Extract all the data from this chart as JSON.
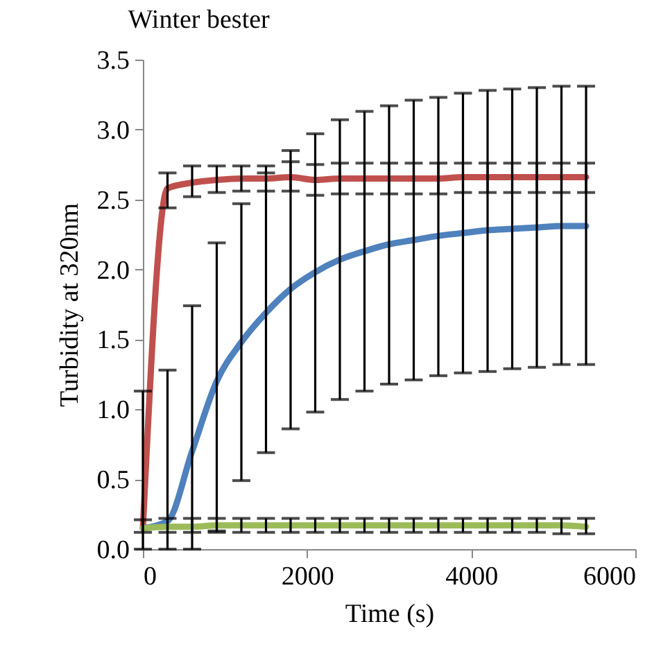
{
  "chart_data": {
    "type": "line",
    "title": "Winter bester",
    "xlabel": "Time (s)",
    "ylabel": "Turbidity at 320nm",
    "x": [
      0,
      300,
      600,
      900,
      1200,
      1500,
      1800,
      2100,
      2400,
      2700,
      3000,
      3300,
      3600,
      3900,
      4200,
      4500,
      4800,
      5100,
      5400
    ],
    "series": [
      {
        "color": "#c0504d",
        "values": [
          0.15,
          2.58,
          2.62,
          2.64,
          2.65,
          2.65,
          2.66,
          2.64,
          2.65,
          2.65,
          2.65,
          2.65,
          2.65,
          2.66,
          2.66,
          2.66,
          2.66,
          2.66,
          2.66
        ],
        "errors": [
          null,
          [
            2.44,
            2.69
          ],
          [
            2.52,
            2.74
          ],
          [
            2.55,
            2.74
          ],
          [
            2.56,
            2.74
          ],
          [
            2.56,
            2.74
          ],
          [
            2.56,
            2.77
          ],
          [
            2.53,
            2.75
          ],
          [
            2.54,
            2.76
          ],
          [
            2.54,
            2.76
          ],
          [
            2.54,
            2.76
          ],
          [
            2.54,
            2.76
          ],
          [
            2.54,
            2.76
          ],
          [
            2.55,
            2.76
          ],
          [
            2.55,
            2.76
          ],
          [
            2.55,
            2.76
          ],
          [
            2.55,
            2.76
          ],
          [
            2.55,
            2.76
          ],
          [
            2.55,
            2.76
          ]
        ]
      },
      {
        "color": "#4f81bd",
        "values": [
          0.15,
          0.2,
          0.7,
          1.2,
          1.48,
          1.69,
          1.86,
          1.98,
          2.07,
          2.13,
          2.18,
          2.21,
          2.24,
          2.26,
          2.28,
          2.29,
          2.3,
          2.31,
          2.31
        ],
        "errors": [
          [
            0,
            1.13
          ],
          [
            0,
            1.28
          ],
          [
            0,
            1.74
          ],
          [
            0.13,
            2.19
          ],
          [
            0.49,
            2.47
          ],
          [
            0.69,
            2.69
          ],
          [
            0.86,
            2.85
          ],
          [
            0.98,
            2.97
          ],
          [
            1.07,
            3.07
          ],
          [
            1.13,
            3.13
          ],
          [
            1.18,
            3.17
          ],
          [
            1.21,
            3.21
          ],
          [
            1.24,
            3.23
          ],
          [
            1.26,
            3.26
          ],
          [
            1.27,
            3.28
          ],
          [
            1.29,
            3.29
          ],
          [
            1.3,
            3.3
          ],
          [
            1.32,
            3.31
          ],
          [
            1.32,
            3.31
          ]
        ]
      },
      {
        "color": "#9bbb59",
        "values": [
          0.15,
          0.16,
          0.16,
          0.17,
          0.17,
          0.17,
          0.17,
          0.17,
          0.17,
          0.17,
          0.17,
          0.17,
          0.17,
          0.17,
          0.17,
          0.17,
          0.17,
          0.17,
          0.16
        ],
        "errors": [
          [
            0.12,
            0.21
          ],
          [
            0.12,
            0.22
          ],
          [
            0.12,
            0.22
          ],
          [
            0.12,
            0.22
          ],
          [
            0.12,
            0.22
          ],
          [
            0.12,
            0.22
          ],
          [
            0.12,
            0.22
          ],
          [
            0.12,
            0.22
          ],
          [
            0.12,
            0.22
          ],
          [
            0.12,
            0.22
          ],
          [
            0.12,
            0.22
          ],
          [
            0.12,
            0.22
          ],
          [
            0.12,
            0.22
          ],
          [
            0.12,
            0.22
          ],
          [
            0.12,
            0.22
          ],
          [
            0.12,
            0.22
          ],
          [
            0.12,
            0.22
          ],
          [
            0.11,
            0.22
          ],
          [
            0.11,
            0.22
          ]
        ]
      }
    ],
    "xlim": [
      0,
      6000
    ],
    "xticks": [
      0,
      2000,
      4000,
      6000
    ],
    "ylim": [
      0,
      3.5
    ],
    "yticks": [
      {
        "value": 0,
        "label": "0.0"
      },
      {
        "value": 0.5,
        "label": "0.5"
      },
      {
        "value": 1,
        "label": "1.0"
      },
      {
        "value": 1.5,
        "label": "1.5"
      },
      {
        "value": 2,
        "label": "2.0"
      },
      {
        "value": 2.5,
        "label": "2.5"
      },
      {
        "value": 3,
        "label": "3.0"
      },
      {
        "value": 3.5,
        "label": "3.5"
      }
    ],
    "grid": false,
    "marker": "none",
    "line_style": "solid"
  }
}
